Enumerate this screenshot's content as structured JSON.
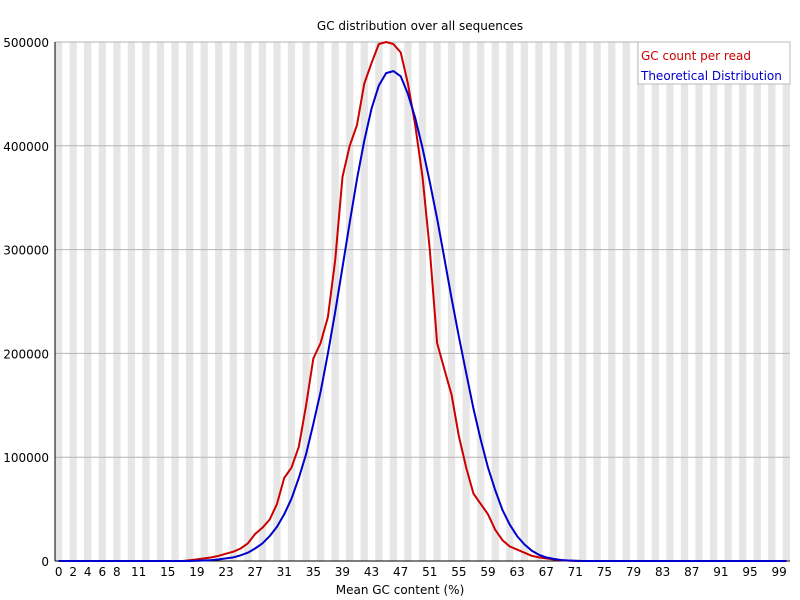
{
  "chart_data": {
    "type": "line",
    "title": "GC distribution over all sequences",
    "xlabel": "Mean GC content (%)",
    "ylabel": "",
    "xlim": [
      0,
      100
    ],
    "ylim": [
      0,
      500000
    ],
    "grid": true,
    "legend_position": "top-right",
    "x_tick_labels": [
      "0",
      "2",
      "4",
      "6",
      "8",
      "11",
      "15",
      "19",
      "23",
      "27",
      "31",
      "35",
      "39",
      "43",
      "47",
      "51",
      "55",
      "59",
      "63",
      "67",
      "71",
      "75",
      "79",
      "83",
      "87",
      "91",
      "95",
      "99"
    ],
    "y_tick_labels": [
      "0",
      "100000",
      "200000",
      "300000",
      "400000",
      "500000"
    ],
    "y_ticks": [
      0,
      100000,
      200000,
      300000,
      400000,
      500000
    ],
    "x": [
      0,
      1,
      2,
      3,
      4,
      5,
      6,
      7,
      8,
      9,
      10,
      11,
      12,
      13,
      14,
      15,
      16,
      17,
      18,
      19,
      20,
      21,
      22,
      23,
      24,
      25,
      26,
      27,
      28,
      29,
      30,
      31,
      32,
      33,
      34,
      35,
      36,
      37,
      38,
      39,
      40,
      41,
      42,
      43,
      44,
      45,
      46,
      47,
      48,
      49,
      50,
      51,
      52,
      53,
      54,
      55,
      56,
      57,
      58,
      59,
      60,
      61,
      62,
      63,
      64,
      65,
      66,
      67,
      68,
      69,
      70,
      71,
      72,
      73,
      74,
      75,
      76,
      77,
      78,
      79,
      80,
      81,
      82,
      83,
      84,
      85,
      86,
      87,
      88,
      89,
      90,
      91,
      92,
      93,
      94,
      95,
      96,
      97,
      98,
      99,
      100
    ],
    "series": [
      {
        "name": "GC count per read",
        "color": "#cc0000",
        "values": [
          0,
          0,
          0,
          0,
          0,
          0,
          0,
          0,
          0,
          0,
          0,
          0,
          0,
          0,
          0,
          0,
          0,
          0,
          800,
          1500,
          2500,
          3500,
          5000,
          7000,
          9000,
          12000,
          17000,
          26000,
          32000,
          40000,
          55000,
          80000,
          90000,
          110000,
          150000,
          195000,
          210000,
          235000,
          290000,
          370000,
          400000,
          420000,
          460000,
          480000,
          498000,
          500000,
          498000,
          490000,
          460000,
          420000,
          370000,
          300000,
          210000,
          185000,
          160000,
          120000,
          90000,
          65000,
          55000,
          45000,
          30000,
          20000,
          14000,
          11000,
          8000,
          5000,
          3500,
          2500,
          1500,
          800,
          400,
          0,
          0,
          0,
          0,
          0,
          0,
          0,
          0,
          0,
          0,
          0,
          0,
          0,
          0,
          0,
          0,
          0,
          0,
          0,
          0,
          0,
          0,
          0,
          0,
          0,
          0,
          0,
          0,
          0,
          0
        ]
      },
      {
        "name": "Theoretical Distribution",
        "color": "#0000cc",
        "values": [
          0,
          0,
          0,
          0,
          0,
          0,
          0,
          0,
          0,
          0,
          0,
          0,
          0,
          0,
          0,
          0,
          0,
          0,
          0,
          300,
          500,
          900,
          1500,
          2500,
          3500,
          5500,
          8000,
          12000,
          17000,
          24000,
          33000,
          45000,
          60000,
          80000,
          103000,
          132000,
          163000,
          200000,
          240000,
          283000,
          326000,
          368000,
          405000,
          436000,
          458000,
          470000,
          472000,
          467000,
          450000,
          427000,
          398000,
          365000,
          330000,
          292000,
          253000,
          216000,
          181000,
          147000,
          117000,
          90000,
          68000,
          49000,
          35000,
          24000,
          16000,
          10000,
          6000,
          3500,
          2000,
          1000,
          500,
          200,
          0,
          0,
          0,
          0,
          0,
          0,
          0,
          0,
          0,
          0,
          0,
          0,
          0,
          0,
          0,
          0,
          0,
          0,
          0,
          0,
          0,
          0,
          0,
          0,
          0,
          0,
          0,
          0,
          0
        ]
      }
    ]
  }
}
